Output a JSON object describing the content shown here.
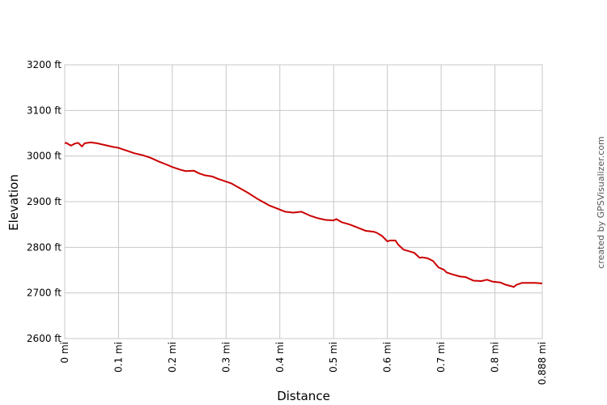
{
  "chart_data": {
    "type": "line",
    "xlabel": "Distance",
    "ylabel": "Elevation",
    "xlim": [
      0,
      0.888
    ],
    "ylim": [
      2600,
      3200
    ],
    "x_ticks": [
      0,
      0.1,
      0.2,
      0.3,
      0.4,
      0.5,
      0.6,
      0.7,
      0.8,
      0.888
    ],
    "x_tick_labels": [
      "0 mi",
      "0.1 mi",
      "0.2 mi",
      "0.3 mi",
      "0.4 mi",
      "0.5 mi",
      "0.6 mi",
      "0.7 mi",
      "0.8 mi",
      "0.888 mi"
    ],
    "y_ticks": [
      2600,
      2700,
      2800,
      2900,
      3000,
      3100,
      3200
    ],
    "y_tick_labels": [
      "2600 ft",
      "2700 ft",
      "2800 ft",
      "2900 ft",
      "3000 ft",
      "3100 ft",
      "3200 ft"
    ],
    "grid": true,
    "line_color": "#cc0000",
    "series": [
      {
        "x": [
          0,
          0.003,
          0.008,
          0.012,
          0.018,
          0.025,
          0.032,
          0.037,
          0.042,
          0.048,
          0.06,
          0.075,
          0.09,
          0.1,
          0.115,
          0.13,
          0.145,
          0.16,
          0.175,
          0.19,
          0.2,
          0.215,
          0.225,
          0.24,
          0.25,
          0.26,
          0.275,
          0.285,
          0.3,
          0.31,
          0.325,
          0.34,
          0.36,
          0.38,
          0.395,
          0.41,
          0.425,
          0.44,
          0.455,
          0.47,
          0.485,
          0.5,
          0.505,
          0.515,
          0.53,
          0.545,
          0.56,
          0.575,
          0.58,
          0.59,
          0.6,
          0.605,
          0.615,
          0.62,
          0.63,
          0.65,
          0.66,
          0.665,
          0.675,
          0.685,
          0.695,
          0.705,
          0.71,
          0.72,
          0.735,
          0.745,
          0.76,
          0.775,
          0.785,
          0.795,
          0.81,
          0.82,
          0.83,
          0.835,
          0.84,
          0.85,
          0.86,
          0.875,
          0.888
        ],
        "y": [
          3028,
          3029,
          3025,
          3023,
          3027,
          3029,
          3021,
          3028,
          3029,
          3030,
          3028,
          3024,
          3020,
          3018,
          3012,
          3006,
          3002,
          2996,
          2988,
          2981,
          2976,
          2970,
          2967,
          2968,
          2962,
          2958,
          2955,
          2950,
          2944,
          2940,
          2930,
          2920,
          2905,
          2892,
          2885,
          2878,
          2876,
          2878,
          2870,
          2864,
          2860,
          2859,
          2862,
          2855,
          2850,
          2843,
          2836,
          2834,
          2832,
          2825,
          2813,
          2815,
          2815,
          2806,
          2795,
          2788,
          2777,
          2778,
          2776,
          2770,
          2756,
          2751,
          2745,
          2741,
          2736,
          2735,
          2727,
          2726,
          2729,
          2725,
          2723,
          2718,
          2715,
          2713,
          2718,
          2722,
          2722,
          2722,
          2721
        ]
      }
    ]
  },
  "credit": "created by GPSVisualizer.com"
}
